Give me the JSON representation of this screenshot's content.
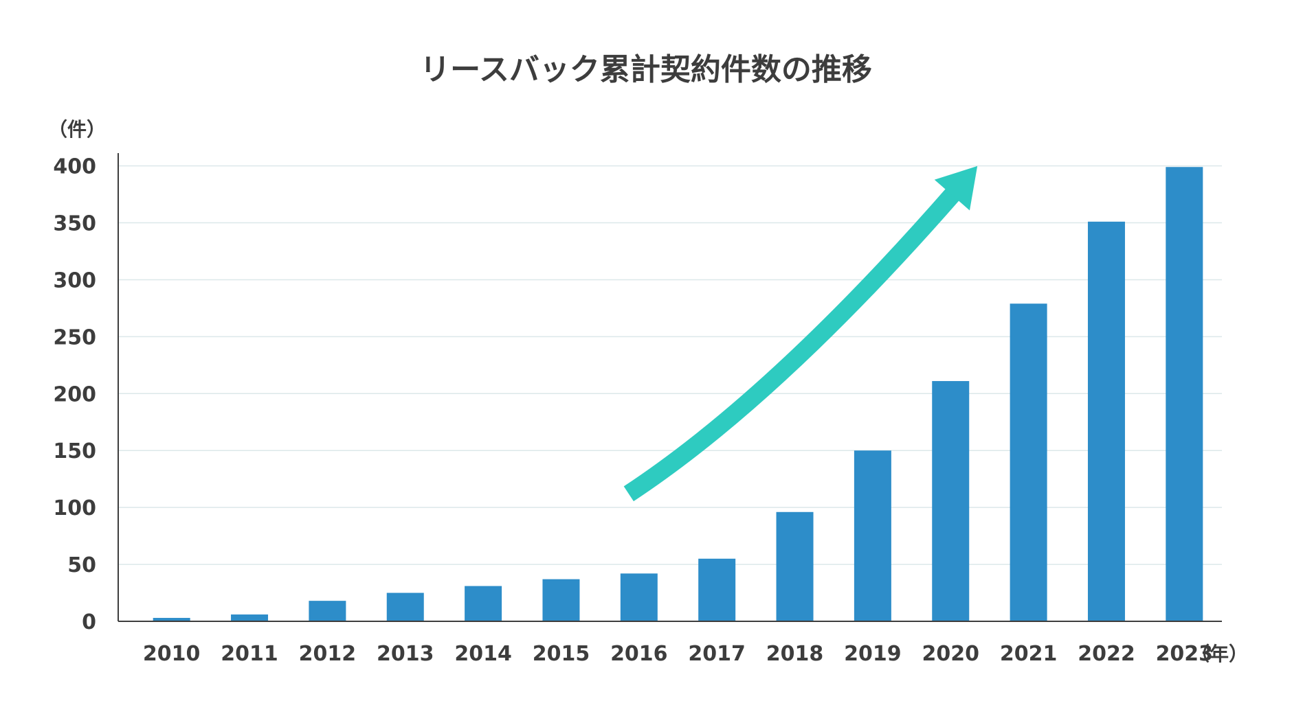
{
  "chart_data": {
    "type": "bar",
    "title": "リースバック累計契約件数の推移",
    "y_unit_label": "（件）",
    "x_unit_label": "（年）",
    "categories": [
      "2010",
      "2011",
      "2012",
      "2013",
      "2014",
      "2015",
      "2016",
      "2017",
      "2018",
      "2019",
      "2020",
      "2021",
      "2022",
      "2023"
    ],
    "values": [
      3,
      6,
      18,
      25,
      31,
      37,
      42,
      55,
      96,
      150,
      211,
      279,
      351,
      399
    ],
    "y_ticks": [
      "0",
      "50",
      "100",
      "150",
      "200",
      "250",
      "300",
      "350",
      "400"
    ],
    "ylim": [
      0,
      410
    ],
    "grid": true,
    "annotation": {
      "type": "trend-arrow",
      "start": {
        "x": "2016",
        "y": 112
      },
      "end": {
        "x": "2021",
        "y": 378
      }
    },
    "colors": {
      "bar": "#2d8dc9",
      "arrow": "#2ecbc0",
      "text": "#3d3d3d",
      "grid": "#dce8ea"
    }
  }
}
